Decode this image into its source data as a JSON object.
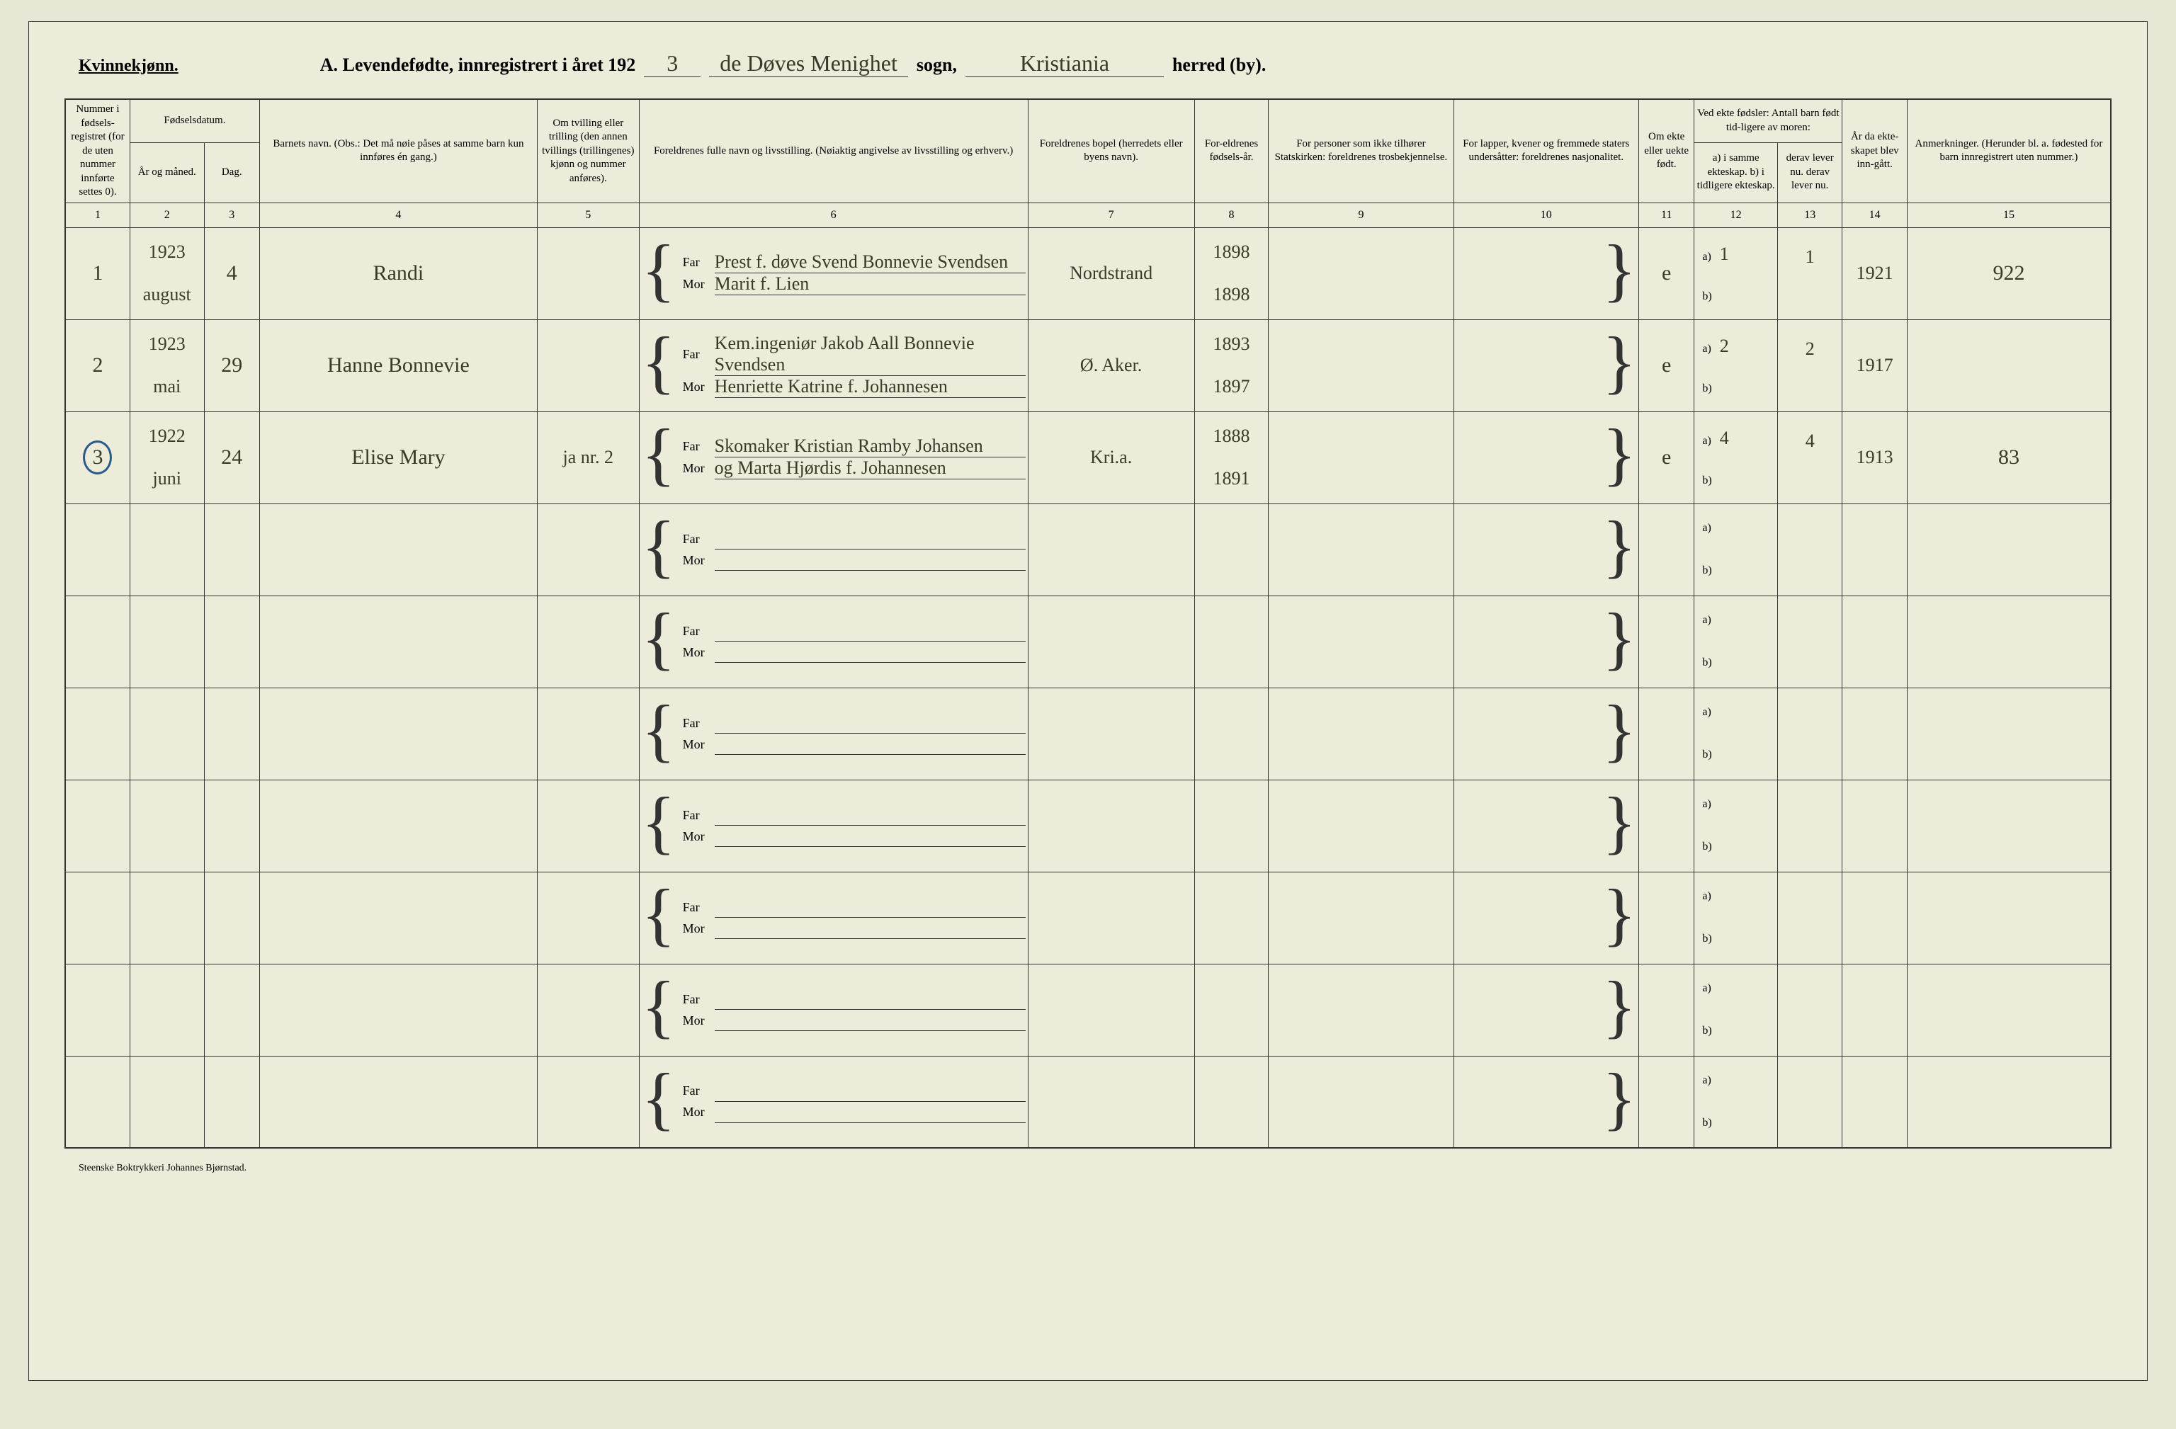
{
  "header": {
    "kvinnekjonn": "Kvinnekjønn.",
    "title_prefix": "A.  Levendefødte, innregistrert i året 192",
    "year_digit": "3",
    "sogn_hw": "de Døves Menighet",
    "sogn_label": "sogn,",
    "herred_hw": "Kristiania",
    "herred_label": "herred (by)."
  },
  "columns": {
    "c1": "Nummer i fødsels-registret (for de uten nummer innførte settes 0).",
    "c23_top": "Fødselsdatum.",
    "c2": "År og måned.",
    "c3": "Dag.",
    "c4": "Barnets navn.\n(Obs.: Det må nøie påses at samme barn kun innføres én gang.)",
    "c5": "Om tvilling eller trilling (den annen tvillings (trillingenes) kjønn og nummer anføres).",
    "c6": "Foreldrenes fulle navn og livsstilling.\n(Nøiaktig angivelse av livsstilling og erhverv.)",
    "c7": "Foreldrenes bopel (herredets eller byens navn).",
    "c8": "For-eldrenes fødsels-år.",
    "c9": "For personer som ikke tilhører Statskirken: foreldrenes trosbekjennelse.",
    "c10": "For lapper, kvener og fremmede staters undersåtter: foreldrenes nasjonalitet.",
    "c11": "Om ekte eller uekte født.",
    "c1213_top": "Ved ekte fødsler: Antall barn født tid-ligere av moren:",
    "c12": "a) i samme ekteskap.\nb) i tidligere ekteskap.",
    "c13": "derav lever nu.\nderav lever nu.",
    "c14": "År da ekte-skapet blev inn-gått.",
    "c15": "Anmerkninger.\n(Herunder bl. a. fødested for barn innregistrert uten nummer.)",
    "nums": [
      "1",
      "2",
      "3",
      "4",
      "5",
      "6",
      "7",
      "8",
      "9",
      "10",
      "11",
      "12",
      "13",
      "14",
      "15"
    ]
  },
  "rows": [
    {
      "num": "1",
      "year": "1923",
      "month": "august",
      "day": "4",
      "name": "Randi",
      "tw": "",
      "far": "Prest f. døve Svend Bonnevie Svendsen",
      "mor": "Marit f. Lien",
      "bopel": "Nordstrand",
      "far_yr": "1898",
      "mor_yr": "1898",
      "ekte": "e",
      "a_same": "1",
      "a_lever": "1",
      "marriage": "1921",
      "note": "922"
    },
    {
      "num": "2",
      "year": "1923",
      "month": "mai",
      "day": "29",
      "name": "Hanne Bonnevie",
      "tw": "",
      "far": "Kem.ingeniør Jakob Aall Bonnevie Svendsen",
      "mor": "Henriette Katrine f. Johannesen",
      "bopel": "Ø. Aker.",
      "far_yr": "1893",
      "mor_yr": "1897",
      "ekte": "e",
      "a_same": "2",
      "a_lever": "2",
      "marriage": "1917",
      "note": ""
    },
    {
      "num": "3",
      "circled": true,
      "year": "1922",
      "month": "juni",
      "day": "24",
      "name": "Elise Mary",
      "tw": "ja\nnr. 2",
      "far": "Skomaker Kristian Ramby Johansen",
      "mor": "og Marta Hjørdis f. Johannesen",
      "bopel": "Kri.a.",
      "far_yr": "1888",
      "mor_yr": "1891",
      "ekte": "e",
      "a_same": "4",
      "a_lever": "4",
      "marriage": "1913",
      "note": "83"
    }
  ],
  "empty_rows": 7,
  "footer": "Steenske Boktrykkeri Johannes Bjørnstad."
}
